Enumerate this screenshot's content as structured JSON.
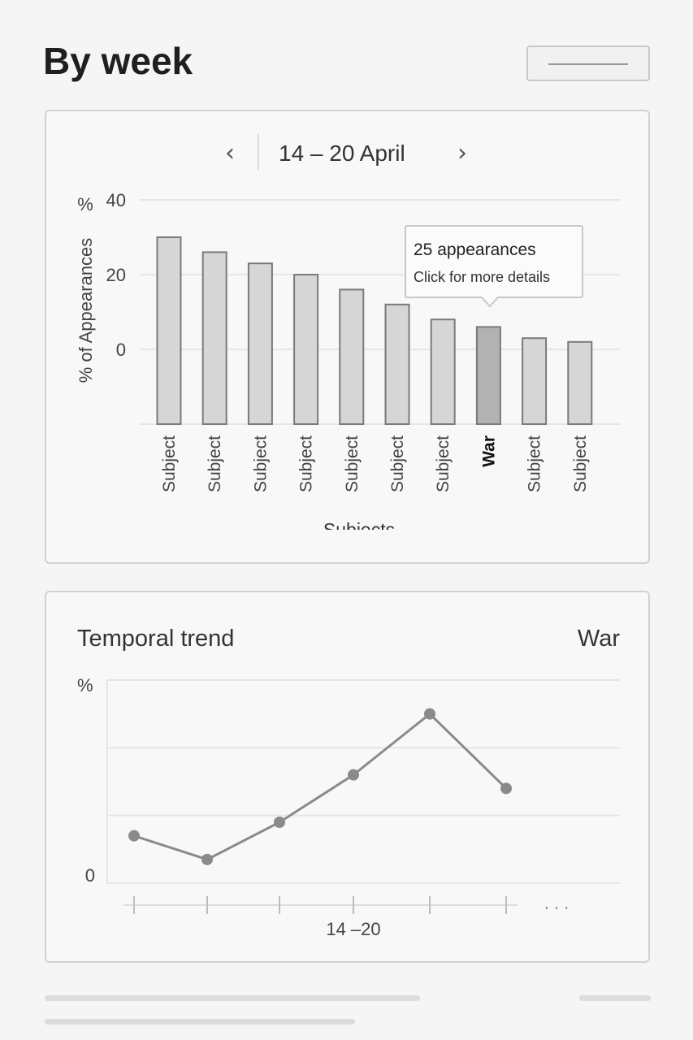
{
  "header": {
    "title": "By week",
    "menu_icon": "menu-icon"
  },
  "week_navigator": {
    "prev_icon": "chevron-left-icon",
    "next_icon": "chevron-right-icon",
    "label": "14 – 20 April"
  },
  "tooltip": {
    "title": "25 appearances",
    "subtitle": "Click for more details"
  },
  "trend_card": {
    "title": "Temporal trend",
    "subject": "War"
  },
  "colors": {
    "bar": "#d6d6d6",
    "bar_highlight": "#b2b2b2",
    "bar_stroke": "#7a7a7a",
    "line": "#8a8a8a",
    "grid": "#e6e6e6"
  },
  "chart_data": [
    {
      "type": "bar",
      "title": "",
      "xlabel": "Subjects",
      "ylabel": "% of Appearances",
      "y_unit_label": "%",
      "ylim": [
        -20,
        40
      ],
      "yticks": [
        "40",
        "20",
        "0"
      ],
      "grid": true,
      "categories": [
        "Subject",
        "Subject",
        "Subject",
        "Subject",
        "Subject",
        "Subject",
        "Subject",
        "War",
        "Subject",
        "Subject"
      ],
      "values": [
        30,
        26,
        23,
        20,
        16,
        12,
        8,
        6,
        3,
        2
      ],
      "highlighted_index": 7
    },
    {
      "type": "line",
      "title": "Temporal trend",
      "series_label": "War",
      "y_unit_label": "%",
      "yticks": [
        "0"
      ],
      "ylim": [
        0,
        30
      ],
      "grid": true,
      "x": [
        "",
        "",
        "",
        "14 –20",
        "",
        ""
      ],
      "x_label": "14 –20",
      "x_continuation": "· · ·",
      "values": [
        7,
        3.5,
        9,
        16,
        25,
        14
      ]
    }
  ]
}
